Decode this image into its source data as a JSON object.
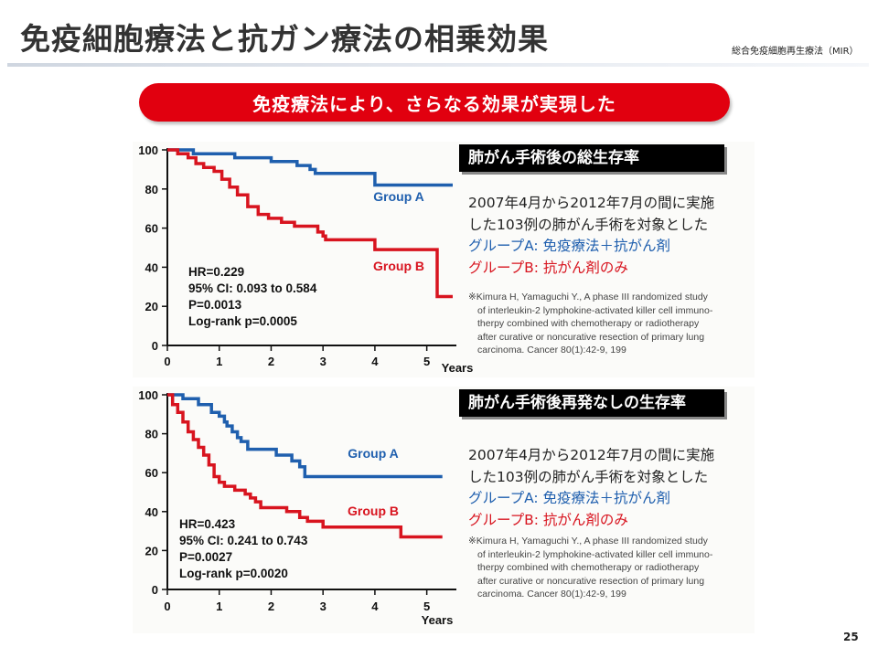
{
  "slide": {
    "title": "免疫細胞療法と抗ガン療法の相乗効果",
    "brand": "総合免疫細胞再生療法（MIR）",
    "banner": "免疫療法により、さらなる効果が実現した",
    "page_number": "25"
  },
  "panels": [
    {
      "caption": "肺がん手術後の総生存率",
      "desc_line1": "2007年4月から2012年7月の間に実施",
      "desc_line2": "した103例の肺がん手術を対象とした",
      "desc_group_a": "グループA: 免疫療法＋抗がん剤",
      "desc_group_b": "グループB: 抗がん剤のみ",
      "reference": [
        "※Kimura H, Yamaguchi Y., A phase III randomized study",
        "of interleukin-2 lymphokine-activated killer cell immuno-",
        "therpy combined with chemotherapy or radiotherapy",
        "after curative or noncurative resection of primary lung",
        "carcinoma. Cancer 80(1):42-9, 199"
      ]
    },
    {
      "caption": "肺がん手術後再発なしの生存率",
      "desc_line1": "2007年4月から2012年7月の間に実施",
      "desc_line2": "した103例の肺がん手術を対象とした",
      "desc_group_a": "グループA: 免疫療法＋抗がん剤",
      "desc_group_b": "グループB: 抗がん剤のみ",
      "reference": [
        "※Kimura H, Yamaguchi Y., A phase III randomized study",
        "of interleukin-2 lymphokine-activated killer cell immuno-",
        "therpy combined with chemotherapy or radiotherapy",
        "after curative or noncurative resection of primary lung",
        "carcinoma. Cancer 80(1):42-9, 199"
      ]
    }
  ],
  "chart_data": [
    {
      "type": "line",
      "step": true,
      "xlabel": "Years",
      "ylabel": "",
      "xlim": [
        0,
        5.5
      ],
      "ylim": [
        0,
        100
      ],
      "x_ticks": [
        "0",
        "1",
        "2",
        "3",
        "4",
        "5"
      ],
      "y_ticks": [
        "0",
        "20",
        "40",
        "60",
        "80",
        "100"
      ],
      "stats": [
        "HR=0.229",
        "95% CI: 0.093 to 0.584",
        "P=0.0013",
        "Log-rank p=0.0005"
      ],
      "series": [
        {
          "name": "Group A",
          "color": "#1f5fae",
          "points": [
            [
              0,
              100
            ],
            [
              0.5,
              100
            ],
            [
              0.5,
              98
            ],
            [
              1.3,
              98
            ],
            [
              1.3,
              96
            ],
            [
              2.0,
              96
            ],
            [
              2.0,
              94
            ],
            [
              2.5,
              94
            ],
            [
              2.5,
              92
            ],
            [
              2.75,
              92
            ],
            [
              2.75,
              90
            ],
            [
              2.85,
              90
            ],
            [
              2.85,
              88
            ],
            [
              4.0,
              88
            ],
            [
              4.0,
              82
            ],
            [
              5.5,
              82
            ]
          ]
        },
        {
          "name": "Group B",
          "color": "#d8141f",
          "points": [
            [
              0,
              100
            ],
            [
              0.2,
              100
            ],
            [
              0.2,
              98
            ],
            [
              0.4,
              98
            ],
            [
              0.4,
              96
            ],
            [
              0.55,
              96
            ],
            [
              0.55,
              93
            ],
            [
              0.7,
              93
            ],
            [
              0.7,
              91
            ],
            [
              0.9,
              91
            ],
            [
              0.9,
              89
            ],
            [
              1.05,
              89
            ],
            [
              1.05,
              85
            ],
            [
              1.2,
              85
            ],
            [
              1.2,
              81
            ],
            [
              1.35,
              81
            ],
            [
              1.35,
              77
            ],
            [
              1.55,
              77
            ],
            [
              1.55,
              71
            ],
            [
              1.75,
              71
            ],
            [
              1.75,
              67
            ],
            [
              1.95,
              67
            ],
            [
              1.95,
              65
            ],
            [
              2.2,
              65
            ],
            [
              2.2,
              63
            ],
            [
              2.45,
              63
            ],
            [
              2.45,
              61
            ],
            [
              2.9,
              61
            ],
            [
              2.9,
              58
            ],
            [
              3.0,
              58
            ],
            [
              3.0,
              56
            ],
            [
              3.05,
              56
            ],
            [
              3.05,
              54
            ],
            [
              4.0,
              54
            ],
            [
              4.0,
              49
            ],
            [
              5.2,
              49
            ],
            [
              5.2,
              25
            ],
            [
              5.5,
              25
            ]
          ]
        }
      ]
    },
    {
      "type": "line",
      "step": true,
      "xlabel": "Years",
      "ylabel": "",
      "xlim": [
        0,
        5.5
      ],
      "ylim": [
        0,
        100
      ],
      "x_ticks": [
        "0",
        "1",
        "2",
        "3",
        "4",
        "5"
      ],
      "y_ticks": [
        "0",
        "20",
        "40",
        "60",
        "80",
        "100"
      ],
      "stats": [
        "HR=0.423",
        "95% CI: 0.241 to 0.743",
        "P=0.0027",
        "Log-rank p=0.0020"
      ],
      "series": [
        {
          "name": "Group A",
          "color": "#1f5fae",
          "points": [
            [
              0,
              100
            ],
            [
              0.3,
              100
            ],
            [
              0.3,
              98
            ],
            [
              0.6,
              98
            ],
            [
              0.6,
              95
            ],
            [
              0.85,
              95
            ],
            [
              0.85,
              91
            ],
            [
              1.0,
              91
            ],
            [
              1.0,
              89
            ],
            [
              1.1,
              89
            ],
            [
              1.1,
              86
            ],
            [
              1.15,
              86
            ],
            [
              1.15,
              84
            ],
            [
              1.25,
              84
            ],
            [
              1.25,
              81
            ],
            [
              1.35,
              81
            ],
            [
              1.35,
              78
            ],
            [
              1.42,
              78
            ],
            [
              1.42,
              76
            ],
            [
              1.55,
              76
            ],
            [
              1.55,
              72
            ],
            [
              2.1,
              72
            ],
            [
              2.1,
              69
            ],
            [
              2.4,
              69
            ],
            [
              2.4,
              66
            ],
            [
              2.55,
              66
            ],
            [
              2.55,
              63
            ],
            [
              2.65,
              63
            ],
            [
              2.65,
              58
            ],
            [
              5.3,
              58
            ]
          ]
        },
        {
          "name": "Group B",
          "color": "#d8141f",
          "points": [
            [
              0,
              100
            ],
            [
              0.1,
              100
            ],
            [
              0.1,
              95
            ],
            [
              0.2,
              95
            ],
            [
              0.2,
              91
            ],
            [
              0.3,
              91
            ],
            [
              0.3,
              86
            ],
            [
              0.4,
              86
            ],
            [
              0.4,
              81
            ],
            [
              0.5,
              81
            ],
            [
              0.5,
              77
            ],
            [
              0.6,
              77
            ],
            [
              0.6,
              73
            ],
            [
              0.7,
              73
            ],
            [
              0.7,
              69
            ],
            [
              0.8,
              69
            ],
            [
              0.8,
              64
            ],
            [
              0.9,
              64
            ],
            [
              0.9,
              58
            ],
            [
              1.0,
              58
            ],
            [
              1.0,
              55
            ],
            [
              1.1,
              55
            ],
            [
              1.1,
              53
            ],
            [
              1.3,
              53
            ],
            [
              1.3,
              51
            ],
            [
              1.5,
              51
            ],
            [
              1.5,
              49
            ],
            [
              1.6,
              49
            ],
            [
              1.6,
              47
            ],
            [
              1.7,
              47
            ],
            [
              1.7,
              45
            ],
            [
              1.8,
              45
            ],
            [
              1.8,
              42
            ],
            [
              2.3,
              42
            ],
            [
              2.3,
              40
            ],
            [
              2.55,
              40
            ],
            [
              2.55,
              37
            ],
            [
              2.7,
              37
            ],
            [
              2.7,
              35
            ],
            [
              3.0,
              35
            ],
            [
              3.0,
              32
            ],
            [
              4.5,
              32
            ],
            [
              4.5,
              27
            ],
            [
              5.3,
              27
            ]
          ]
        }
      ]
    }
  ]
}
